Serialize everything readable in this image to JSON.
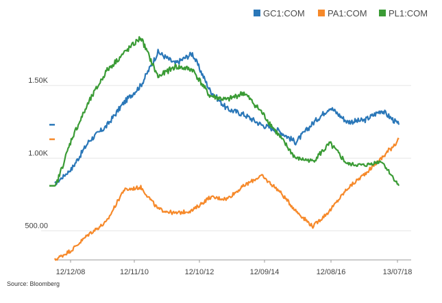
{
  "chart_data": {
    "type": "line",
    "title": "",
    "xlabel": "",
    "ylabel": "",
    "source": "Source: Bloomberg",
    "x_ticks": [
      "12/12/08",
      "12/11/10",
      "12/10/12",
      "12/09/14",
      "12/08/16",
      "13/07/18"
    ],
    "y_ticks": [
      "500.00",
      "1.00K",
      "1.50K"
    ],
    "ylim": [
      300,
      1900
    ],
    "grid": "horizontal",
    "legend_position": "top-right",
    "x": [
      "12/12/08",
      "12/06/09",
      "12/11/09",
      "12/05/10",
      "12/11/10",
      "12/05/11",
      "12/10/11",
      "12/04/12",
      "12/10/12",
      "12/04/13",
      "12/09/13",
      "12/03/14",
      "12/09/14",
      "12/03/15",
      "12/08/15",
      "12/02/16",
      "12/08/16",
      "12/02/17",
      "12/07/17",
      "12/01/18",
      "13/07/18"
    ],
    "series": [
      {
        "name": "GC1:COM",
        "color": "#2a77b8",
        "values": [
          820,
          930,
          1120,
          1220,
          1380,
          1500,
          1730,
          1650,
          1720,
          1470,
          1340,
          1300,
          1230,
          1190,
          1110,
          1240,
          1350,
          1250,
          1260,
          1330,
          1230
        ]
      },
      {
        "name": "PA1:COM",
        "color": "#f6892a",
        "values": [
          300,
          370,
          480,
          560,
          780,
          800,
          650,
          620,
          640,
          730,
          720,
          810,
          880,
          780,
          640,
          530,
          640,
          790,
          890,
          1000,
          1130
        ]
      },
      {
        "name": "PL1:COM",
        "color": "#3a9b35",
        "values": [
          790,
          1140,
          1390,
          1600,
          1720,
          1830,
          1560,
          1630,
          1610,
          1430,
          1400,
          1450,
          1320,
          1160,
          1000,
          980,
          1100,
          960,
          950,
          980,
          810
        ]
      }
    ],
    "end_markers": [
      "GC1:COM",
      "PA1:COM",
      "PL1:COM"
    ]
  }
}
